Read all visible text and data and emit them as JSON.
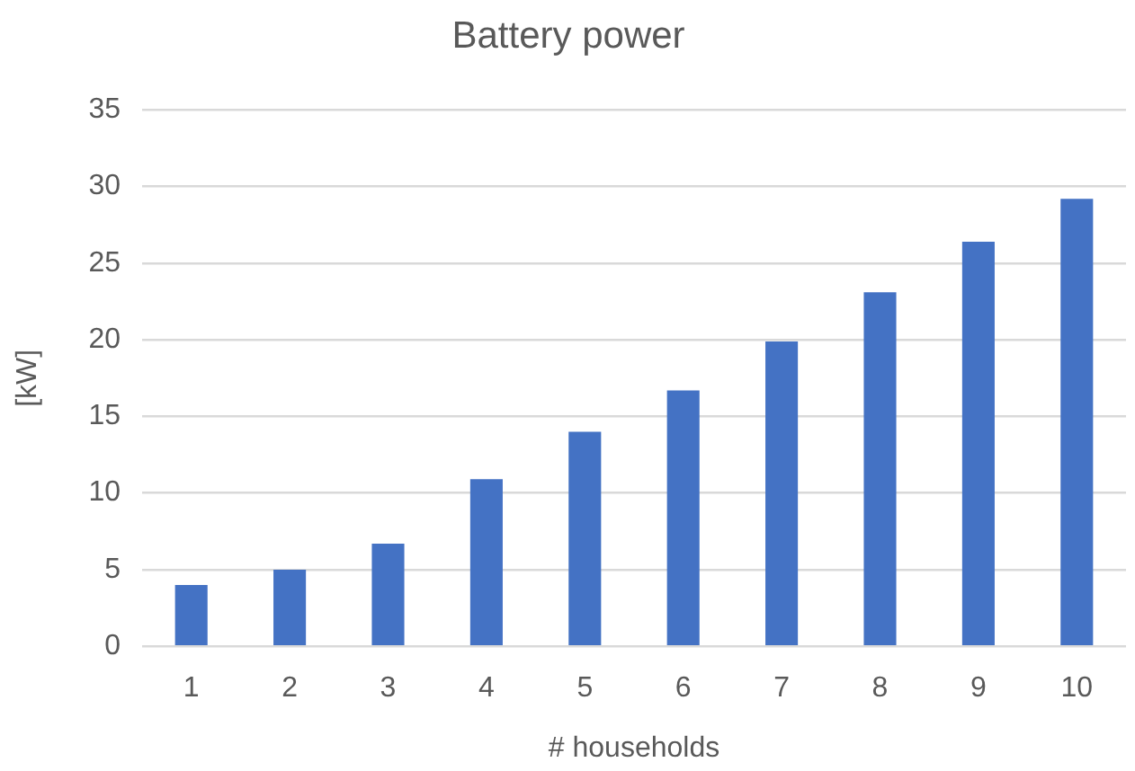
{
  "chart_data": {
    "type": "bar",
    "title": "Battery power",
    "xlabel": "# households",
    "ylabel": "[kW]",
    "categories": [
      "1",
      "2",
      "3",
      "4",
      "5",
      "6",
      "7",
      "8",
      "9",
      "10"
    ],
    "values": [
      4.0,
      5.0,
      6.7,
      10.9,
      14.0,
      16.7,
      19.9,
      23.1,
      26.4,
      29.2
    ],
    "color": "#4472c4",
    "ylim": [
      0,
      35
    ],
    "yticks": [
      0,
      5,
      10,
      15,
      20,
      25,
      30,
      35
    ],
    "grid": "y"
  }
}
